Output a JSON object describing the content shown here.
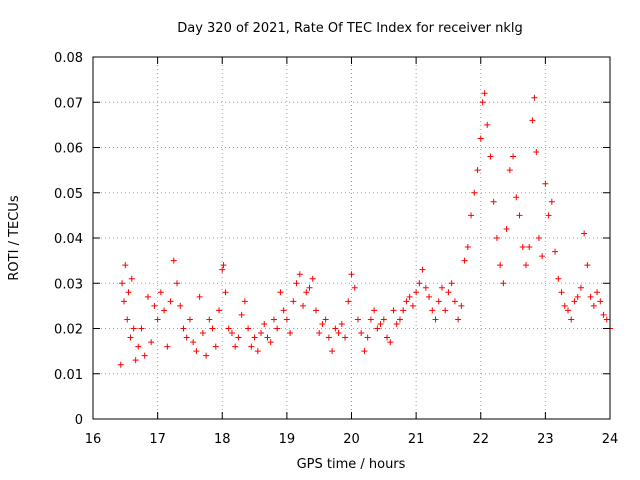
{
  "chart_data": {
    "type": "scatter",
    "title": "Day 320 of 2021, Rate Of TEC Index for receiver nklg",
    "xlabel": "GPS time / hours",
    "ylabel": "ROTI / TECUs",
    "xlim": [
      16,
      24
    ],
    "ylim": [
      0,
      0.08
    ],
    "x_ticks": [
      16,
      17,
      18,
      19,
      20,
      21,
      22,
      23,
      24
    ],
    "x_tick_labels": [
      "16",
      "17",
      "18",
      "19",
      "20",
      "21",
      "22",
      "23",
      "24"
    ],
    "y_ticks": [
      0,
      0.01,
      0.02,
      0.03,
      0.04,
      0.05,
      0.06,
      0.07,
      0.08
    ],
    "y_tick_labels": [
      "0",
      "0.01",
      "0.02",
      "0.03",
      "0.04",
      "0.05",
      "0.06",
      "0.07",
      "0.08"
    ],
    "grid": true,
    "marker": "+",
    "color": "#ff0000",
    "series": [
      {
        "name": "ROTI",
        "x": [
          16.43,
          16.45,
          16.48,
          16.5,
          16.53,
          16.55,
          16.58,
          16.6,
          16.63,
          16.66,
          16.7,
          16.75,
          16.8,
          16.85,
          16.9,
          16.95,
          17.0,
          17.05,
          17.1,
          17.15,
          17.2,
          17.25,
          17.3,
          17.35,
          17.4,
          17.45,
          17.5,
          17.55,
          17.6,
          17.65,
          17.7,
          17.75,
          17.8,
          17.85,
          17.9,
          17.95,
          18.0,
          18.02,
          18.05,
          18.1,
          18.15,
          18.2,
          18.25,
          18.3,
          18.35,
          18.4,
          18.45,
          18.5,
          18.55,
          18.6,
          18.65,
          18.7,
          18.75,
          18.8,
          18.85,
          18.9,
          18.95,
          19.0,
          19.05,
          19.1,
          19.15,
          19.2,
          19.25,
          19.3,
          19.35,
          19.4,
          19.45,
          19.5,
          19.55,
          19.6,
          19.65,
          19.7,
          19.75,
          19.8,
          19.85,
          19.9,
          19.95,
          20.0,
          20.05,
          20.1,
          20.15,
          20.2,
          20.25,
          20.3,
          20.35,
          20.4,
          20.45,
          20.5,
          20.55,
          20.6,
          20.65,
          20.7,
          20.75,
          20.8,
          20.85,
          20.9,
          20.95,
          21.0,
          21.05,
          21.1,
          21.15,
          21.2,
          21.25,
          21.3,
          21.35,
          21.4,
          21.45,
          21.5,
          21.55,
          21.6,
          21.65,
          21.7,
          21.75,
          21.8,
          21.85,
          21.9,
          21.95,
          22.0,
          22.03,
          22.06,
          22.1,
          22.15,
          22.2,
          22.25,
          22.3,
          22.35,
          22.4,
          22.45,
          22.5,
          22.55,
          22.6,
          22.65,
          22.7,
          22.75,
          22.8,
          22.83,
          22.86,
          22.9,
          22.95,
          23.0,
          23.05,
          23.1,
          23.15,
          23.2,
          23.25,
          23.3,
          23.35,
          23.4,
          23.45,
          23.5,
          23.55,
          23.6,
          23.65,
          23.7,
          23.75,
          23.8,
          23.85,
          23.9,
          23.95,
          24.0
        ],
        "y": [
          0.012,
          0.03,
          0.026,
          0.034,
          0.022,
          0.028,
          0.018,
          0.031,
          0.02,
          0.013,
          0.016,
          0.02,
          0.014,
          0.027,
          0.017,
          0.025,
          0.022,
          0.028,
          0.024,
          0.016,
          0.026,
          0.035,
          0.03,
          0.025,
          0.02,
          0.018,
          0.022,
          0.017,
          0.015,
          0.027,
          0.019,
          0.014,
          0.022,
          0.02,
          0.016,
          0.024,
          0.033,
          0.034,
          0.028,
          0.02,
          0.019,
          0.016,
          0.018,
          0.023,
          0.026,
          0.02,
          0.016,
          0.018,
          0.015,
          0.019,
          0.021,
          0.018,
          0.017,
          0.022,
          0.02,
          0.028,
          0.024,
          0.022,
          0.019,
          0.026,
          0.03,
          0.032,
          0.025,
          0.028,
          0.029,
          0.031,
          0.024,
          0.019,
          0.021,
          0.022,
          0.018,
          0.015,
          0.02,
          0.019,
          0.021,
          0.018,
          0.026,
          0.032,
          0.029,
          0.022,
          0.019,
          0.015,
          0.018,
          0.022,
          0.024,
          0.02,
          0.021,
          0.022,
          0.018,
          0.017,
          0.024,
          0.021,
          0.022,
          0.024,
          0.026,
          0.027,
          0.025,
          0.028,
          0.03,
          0.033,
          0.029,
          0.027,
          0.024,
          0.022,
          0.026,
          0.029,
          0.024,
          0.028,
          0.03,
          0.026,
          0.022,
          0.025,
          0.035,
          0.038,
          0.045,
          0.05,
          0.055,
          0.062,
          0.07,
          0.072,
          0.065,
          0.058,
          0.048,
          0.04,
          0.034,
          0.03,
          0.042,
          0.055,
          0.058,
          0.049,
          0.045,
          0.038,
          0.034,
          0.038,
          0.066,
          0.071,
          0.059,
          0.04,
          0.036,
          0.052,
          0.045,
          0.048,
          0.037,
          0.031,
          0.028,
          0.025,
          0.024,
          0.022,
          0.026,
          0.027,
          0.029,
          0.041,
          0.034,
          0.027,
          0.025,
          0.028,
          0.026,
          0.023,
          0.022,
          0.02
        ]
      }
    ]
  }
}
